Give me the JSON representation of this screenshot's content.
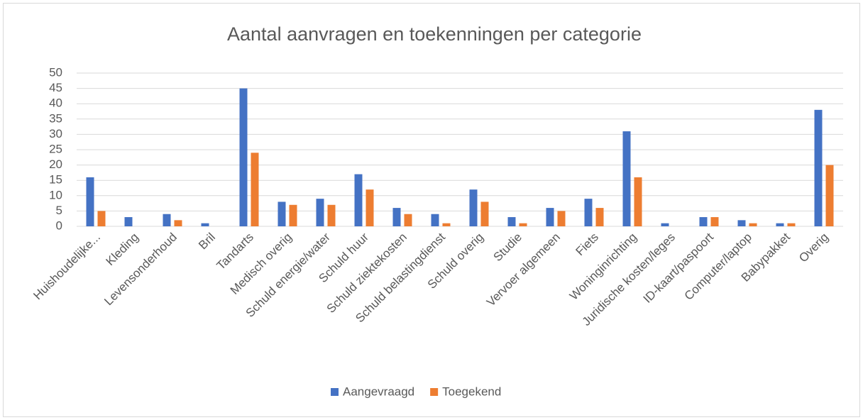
{
  "chart_data": {
    "type": "bar",
    "title": "Aantal aanvragen en toekenningen per categorie",
    "categories": [
      "Huishoudelijke...",
      "Kleding",
      "Levensonderhoud",
      "Bril",
      "Tandarts",
      "Medisch overig",
      "Schuld energie/water",
      "Schuld huur",
      "Schuld ziektekosten",
      "Schuld belastingdienst",
      "Schuld overig",
      "Studie",
      "Vervoer algemeen",
      "Fiets",
      "Woninginrichting",
      "Juridische kosten/leges",
      "ID-kaart/paspoort",
      "Computer/laptop",
      "Babypakket",
      "Overig"
    ],
    "series": [
      {
        "name": "Aangevraagd",
        "color": "#4472c4",
        "values": [
          16,
          3,
          4,
          1,
          45,
          8,
          9,
          17,
          6,
          4,
          12,
          3,
          6,
          9,
          31,
          1,
          3,
          2,
          1,
          38
        ]
      },
      {
        "name": "Toegekend",
        "color": "#ed7d31",
        "values": [
          5,
          0,
          2,
          0,
          24,
          7,
          7,
          12,
          4,
          1,
          8,
          1,
          5,
          6,
          16,
          0,
          3,
          1,
          1,
          20
        ]
      }
    ],
    "ylim": [
      0,
      50
    ],
    "yticks": [
      0,
      5,
      10,
      15,
      20,
      25,
      30,
      35,
      40,
      45,
      50
    ],
    "grid": true,
    "legend": "bottom"
  }
}
